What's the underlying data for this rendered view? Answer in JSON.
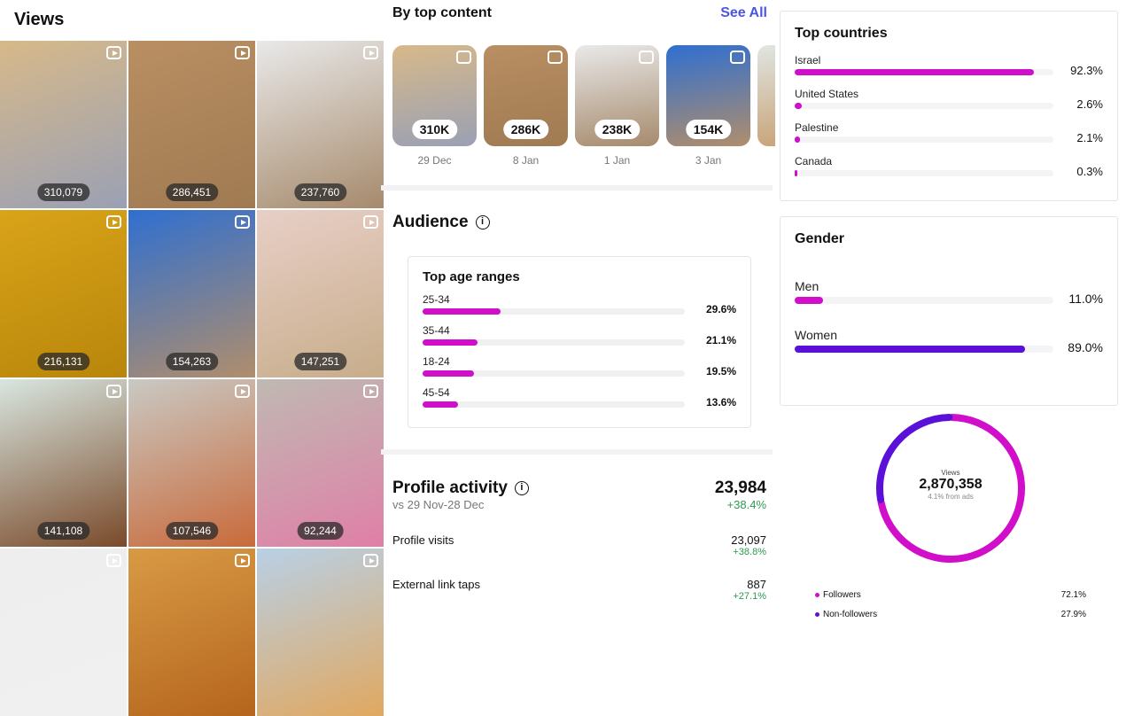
{
  "views": {
    "title": "Views",
    "tiles": [
      {
        "count": "310,079",
        "colors": [
          "#d7b98a",
          "#9aa0b4"
        ]
      },
      {
        "count": "286,451",
        "colors": [
          "#b98f62",
          "#a07a52"
        ]
      },
      {
        "count": "237,760",
        "colors": [
          "#e9e9e9",
          "#a68a6c"
        ]
      },
      {
        "count": "216,131",
        "colors": [
          "#d9a419",
          "#b8860b"
        ]
      },
      {
        "count": "154,263",
        "colors": [
          "#2f6fd0",
          "#b08e6c"
        ]
      },
      {
        "count": "147,251",
        "colors": [
          "#e8cfc7",
          "#c7ad8a"
        ]
      },
      {
        "count": "141,108",
        "colors": [
          "#d8e6e0",
          "#7a4a2a"
        ]
      },
      {
        "count": "107,546",
        "colors": [
          "#c9c9c4",
          "#c96a3a"
        ]
      },
      {
        "count": "92,244",
        "colors": [
          "#bfb9b2",
          "#e07fa7"
        ]
      },
      {
        "count": "",
        "colors": [
          "#eeeeee",
          "#f0f0f0"
        ]
      },
      {
        "count": "",
        "colors": [
          "#d89a45",
          "#b5651d"
        ]
      },
      {
        "count": "",
        "colors": [
          "#b9d0e6",
          "#e0a860"
        ]
      }
    ]
  },
  "top_content": {
    "title": "By top content",
    "see_all": "See All",
    "items": [
      {
        "value": "310K",
        "date": "29 Dec",
        "colors": [
          "#d7b98a",
          "#9aa0b4"
        ]
      },
      {
        "value": "286K",
        "date": "8 Jan",
        "colors": [
          "#b98f62",
          "#a07a52"
        ]
      },
      {
        "value": "238K",
        "date": "1 Jan",
        "colors": [
          "#e9e9e9",
          "#a68a6c"
        ]
      },
      {
        "value": "154K",
        "date": "3 Jan",
        "colors": [
          "#2f6fd0",
          "#b08e6c"
        ]
      }
    ]
  },
  "audience": {
    "title": "Audience",
    "info": "i",
    "age_title": "Top age ranges",
    "ages": [
      {
        "label": "25-34",
        "pct": "29.6%",
        "value": 29.6
      },
      {
        "label": "35-44",
        "pct": "21.1%",
        "value": 21.1
      },
      {
        "label": "18-24",
        "pct": "19.5%",
        "value": 19.5
      },
      {
        "label": "45-54",
        "pct": "13.6%",
        "value": 13.6
      }
    ]
  },
  "profile_activity": {
    "title": "Profile activity",
    "info": "i",
    "compare": "vs 29 Nov-28 Dec",
    "total": "23,984",
    "total_change": "+38.4%",
    "rows": [
      {
        "label": "Profile visits",
        "value": "23,097",
        "change": "+38.8%"
      },
      {
        "label": "External link taps",
        "value": "887",
        "change": "+27.1%"
      }
    ]
  },
  "countries": {
    "title": "Top countries",
    "items": [
      {
        "label": "Israel",
        "pct": "92.3%",
        "value": 92.3
      },
      {
        "label": "United States",
        "pct": "2.6%",
        "value": 2.6
      },
      {
        "label": "Palestine",
        "pct": "2.1%",
        "value": 2.1
      },
      {
        "label": "Canada",
        "pct": "0.3%",
        "value": 0.3
      }
    ]
  },
  "gender": {
    "title": "Gender",
    "items": [
      {
        "label": "Men",
        "pct": "11.0%",
        "value": 11.0,
        "color": "#d10ec9"
      },
      {
        "label": "Women",
        "pct": "89.0%",
        "value": 89.0,
        "color": "#5a10d8"
      }
    ]
  },
  "donut": {
    "label": "Views",
    "total": "2,870,358",
    "ads": "4.1% from ads",
    "segments": [
      {
        "label": "Followers",
        "pct": "72.1%",
        "value": 72.1,
        "color": "#d10ec9"
      },
      {
        "label": "Non-followers",
        "pct": "27.9%",
        "value": 27.9,
        "color": "#5a10d8"
      }
    ]
  }
}
